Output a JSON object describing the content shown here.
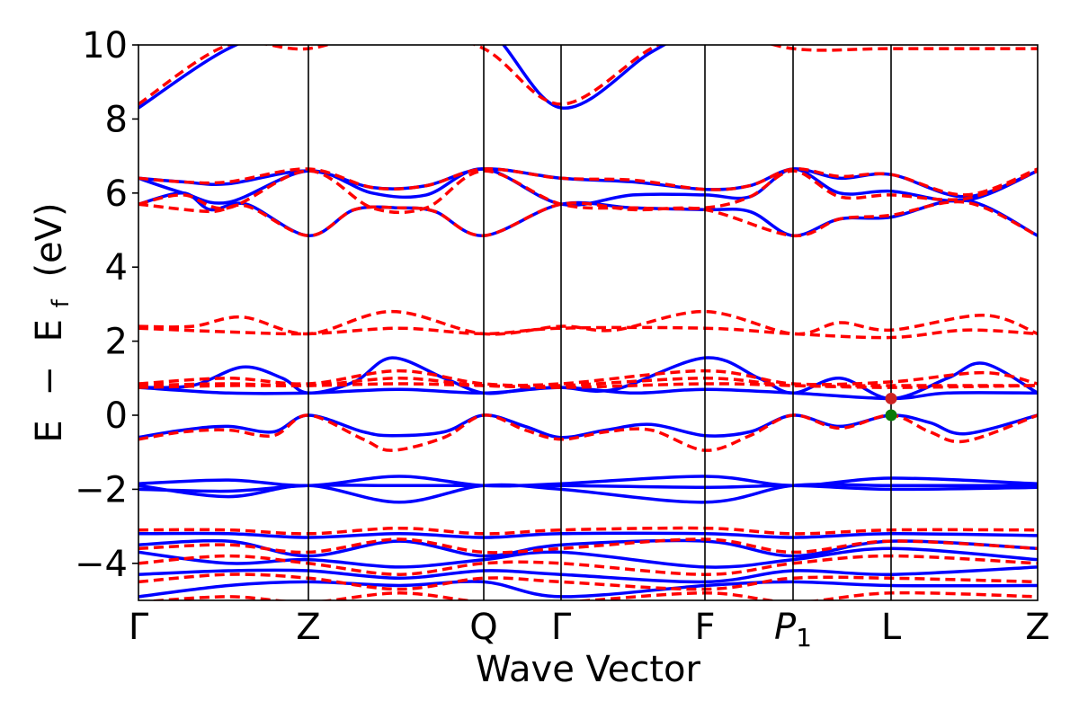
{
  "chart_data": {
    "type": "line",
    "xlabel": "Wave Vector",
    "ylabel_parts": [
      "E",
      "−",
      "E",
      "f",
      "(eV)"
    ],
    "ylim": [
      -5,
      10
    ],
    "yticks": [
      -4,
      -2,
      0,
      2,
      4,
      6,
      8,
      10
    ],
    "ytick_labels": [
      "−4",
      "−2",
      "0",
      "2",
      "4",
      "6",
      "8",
      "10"
    ],
    "xlim": [
      0,
      1
    ],
    "high_symmetry_points": [
      {
        "label": "Γ",
        "x": 0.0
      },
      {
        "label": "Z",
        "x": 0.189
      },
      {
        "label": "Q",
        "x": 0.384
      },
      {
        "label": "Γ",
        "x": 0.47
      },
      {
        "label": "F",
        "x": 0.63
      },
      {
        "label": "P",
        "sub": "1",
        "x": 0.728
      },
      {
        "label": "L",
        "x": 0.837
      },
      {
        "label": "Z",
        "x": 1.0
      }
    ],
    "series": [
      {
        "style": "solid",
        "color": "#0000ff",
        "bands": [
          {
            "x": [
              0,
              0.1,
              0.189,
              0.29,
              0.384,
              0.47,
              0.57,
              0.63,
              0.68,
              0.728,
              0.78,
              0.837,
              0.92,
              1.0
            ],
            "y": [
              8.3,
              9.9,
              10.6,
              10.6,
              10.5,
              8.3,
              9.8,
              10.5,
              10.4,
              10.6,
              10.4,
              10.6,
              10.5,
              10.6
            ]
          },
          {
            "x": [
              0,
              0.05,
              0.1,
              0.189,
              0.26,
              0.32,
              0.384,
              0.47,
              0.55,
              0.63,
              0.68,
              0.728,
              0.78,
              0.837,
              0.92,
              1.0
            ],
            "y": [
              6.4,
              6.3,
              6.25,
              6.6,
              6.15,
              6.2,
              6.65,
              6.4,
              6.3,
              6.1,
              6.2,
              6.65,
              6.4,
              6.5,
              5.9,
              6.6
            ]
          },
          {
            "x": [
              0,
              0.05,
              0.1,
              0.189,
              0.26,
              0.32,
              0.384,
              0.47,
              0.55,
              0.63,
              0.68,
              0.728,
              0.78,
              0.837,
              0.92,
              1.0
            ],
            "y": [
              6.4,
              6.0,
              5.75,
              6.6,
              6.0,
              5.95,
              6.65,
              5.7,
              5.95,
              5.95,
              5.9,
              6.65,
              6.0,
              6.05,
              5.8,
              6.6
            ]
          },
          {
            "x": [
              0,
              0.05,
              0.08,
              0.12,
              0.189,
              0.24,
              0.29,
              0.33,
              0.384,
              0.47,
              0.55,
              0.63,
              0.68,
              0.728,
              0.78,
              0.837,
              0.92,
              1.0
            ],
            "y": [
              5.7,
              6.0,
              5.55,
              5.7,
              4.85,
              5.55,
              5.6,
              5.5,
              4.85,
              5.7,
              5.6,
              5.55,
              5.5,
              4.85,
              5.3,
              5.35,
              5.8,
              4.85
            ]
          },
          {
            "x": [
              0,
              0.06,
              0.116,
              0.16,
              0.189,
              0.24,
              0.282,
              0.34,
              0.384,
              0.43,
              0.47,
              0.53,
              0.63,
              0.69,
              0.728,
              0.78,
              0.837,
              0.9,
              0.94,
              1.0
            ],
            "y": [
              0.75,
              0.8,
              1.3,
              1.0,
              0.6,
              0.9,
              1.55,
              1.0,
              0.6,
              0.7,
              0.75,
              0.7,
              1.55,
              1.0,
              0.6,
              1.0,
              0.45,
              1.0,
              1.4,
              0.6
            ]
          },
          {
            "x": [
              0,
              0.1,
              0.189,
              0.29,
              0.384,
              0.47,
              0.55,
              0.63,
              0.728,
              0.837,
              0.9,
              1.0
            ],
            "y": [
              0.75,
              0.6,
              0.6,
              0.7,
              0.6,
              0.75,
              0.6,
              0.7,
              0.6,
              0.45,
              0.6,
              0.6
            ]
          },
          {
            "x": [
              0,
              0.05,
              0.1,
              0.15,
              0.189,
              0.25,
              0.282,
              0.34,
              0.384,
              0.43,
              0.47,
              0.52,
              0.57,
              0.63,
              0.68,
              0.728,
              0.78,
              0.837,
              0.88,
              0.92,
              1.0
            ],
            "y": [
              -0.6,
              -0.4,
              -0.3,
              -0.45,
              0.0,
              -0.45,
              -0.55,
              -0.45,
              0.0,
              -0.3,
              -0.6,
              -0.4,
              -0.25,
              -0.55,
              -0.45,
              0.0,
              -0.3,
              0.0,
              -0.2,
              -0.5,
              0.0
            ]
          },
          {
            "x": [
              0,
              0.1,
              0.189,
              0.29,
              0.384,
              0.47,
              0.63,
              0.728,
              0.837,
              1.0
            ],
            "y": [
              -1.85,
              -1.75,
              -1.9,
              -1.65,
              -1.9,
              -1.85,
              -1.65,
              -1.9,
              -1.7,
              -1.85
            ]
          },
          {
            "x": [
              0,
              0.1,
              0.189,
              0.29,
              0.384,
              0.47,
              0.63,
              0.728,
              0.837,
              1.0
            ],
            "y": [
              -1.9,
              -2.2,
              -1.9,
              -2.35,
              -1.9,
              -2.0,
              -2.35,
              -1.9,
              -1.9,
              -1.9
            ]
          },
          {
            "x": [
              0,
              0.1,
              0.189,
              0.29,
              0.384,
              0.47,
              0.63,
              0.728,
              0.837,
              1.0
            ],
            "y": [
              -2.0,
              -2.05,
              -1.9,
              -1.9,
              -1.9,
              -1.9,
              -1.95,
              -1.9,
              -2.0,
              -1.95
            ]
          },
          {
            "x": [
              0,
              0.1,
              0.189,
              0.29,
              0.384,
              0.47,
              0.63,
              0.728,
              0.837,
              1.0
            ],
            "y": [
              -3.2,
              -3.2,
              -3.3,
              -3.2,
              -3.3,
              -3.2,
              -3.2,
              -3.3,
              -3.2,
              -3.25
            ]
          },
          {
            "x": [
              0,
              0.1,
              0.189,
              0.29,
              0.384,
              0.47,
              0.63,
              0.728,
              0.837,
              1.0
            ],
            "y": [
              -3.5,
              -3.4,
              -3.8,
              -3.4,
              -3.8,
              -3.5,
              -3.4,
              -3.8,
              -3.4,
              -3.6
            ]
          },
          {
            "x": [
              0,
              0.1,
              0.189,
              0.29,
              0.384,
              0.47,
              0.63,
              0.728,
              0.837,
              1.0
            ],
            "y": [
              -3.7,
              -4.0,
              -3.9,
              -4.1,
              -3.9,
              -3.7,
              -4.1,
              -3.9,
              -3.6,
              -3.9
            ]
          },
          {
            "x": [
              0,
              0.1,
              0.189,
              0.29,
              0.384,
              0.47,
              0.63,
              0.728,
              0.837,
              1.0
            ],
            "y": [
              -4.3,
              -4.2,
              -4.2,
              -4.4,
              -4.2,
              -4.3,
              -4.5,
              -4.2,
              -4.3,
              -4.1
            ]
          },
          {
            "x": [
              0,
              0.1,
              0.189,
              0.29,
              0.384,
              0.47,
              0.63,
              0.728,
              0.837,
              1.0
            ],
            "y": [
              -4.9,
              -4.6,
              -4.5,
              -4.6,
              -4.5,
              -4.9,
              -4.6,
              -4.5,
              -4.6,
              -4.6
            ]
          }
        ]
      },
      {
        "style": "dashed",
        "color": "#ff0000",
        "bands": [
          {
            "x": [
              0,
              0.1,
              0.189,
              0.29,
              0.384,
              0.47,
              0.57,
              0.63,
              0.728,
              0.837,
              1.0
            ],
            "y": [
              8.4,
              10.0,
              9.9,
              10.5,
              9.9,
              8.4,
              9.9,
              10.5,
              9.9,
              9.9,
              9.9
            ]
          },
          {
            "x": [
              0,
              0.05,
              0.1,
              0.189,
              0.26,
              0.32,
              0.384,
              0.47,
              0.55,
              0.63,
              0.68,
              0.728,
              0.78,
              0.837,
              0.92,
              1.0
            ],
            "y": [
              6.4,
              6.3,
              6.3,
              6.65,
              6.15,
              6.2,
              6.65,
              6.4,
              6.35,
              6.1,
              6.2,
              6.65,
              6.45,
              6.5,
              5.95,
              6.65
            ]
          },
          {
            "x": [
              0,
              0.05,
              0.1,
              0.189,
              0.26,
              0.32,
              0.384,
              0.47,
              0.55,
              0.63,
              0.68,
              0.728,
              0.78,
              0.837,
              0.92,
              1.0
            ],
            "y": [
              5.7,
              5.95,
              5.6,
              6.6,
              5.6,
              5.6,
              6.6,
              5.7,
              5.6,
              5.6,
              5.9,
              6.6,
              5.9,
              5.95,
              5.85,
              6.6
            ]
          },
          {
            "x": [
              0,
              0.08,
              0.12,
              0.189,
              0.24,
              0.29,
              0.33,
              0.384,
              0.47,
              0.55,
              0.63,
              0.728,
              0.78,
              0.837,
              0.92,
              1.0
            ],
            "y": [
              5.7,
              5.5,
              5.65,
              4.85,
              5.55,
              5.6,
              5.5,
              4.85,
              5.7,
              5.55,
              5.55,
              4.85,
              5.3,
              5.4,
              5.75,
              4.85
            ]
          },
          {
            "x": [
              0,
              0.06,
              0.116,
              0.189,
              0.282,
              0.384,
              0.47,
              0.53,
              0.63,
              0.728,
              0.78,
              0.837,
              0.94,
              1.0
            ],
            "y": [
              2.4,
              2.4,
              2.65,
              2.2,
              2.8,
              2.2,
              2.4,
              2.3,
              2.8,
              2.2,
              2.5,
              2.3,
              2.7,
              2.2
            ]
          },
          {
            "x": [
              0,
              0.1,
              0.189,
              0.29,
              0.384,
              0.47,
              0.63,
              0.728,
              0.837,
              0.92,
              1.0
            ],
            "y": [
              2.35,
              2.25,
              2.2,
              2.35,
              2.2,
              2.35,
              2.35,
              2.2,
              2.1,
              2.3,
              2.2
            ]
          },
          {
            "x": [
              0,
              0.1,
              0.189,
              0.29,
              0.384,
              0.47,
              0.63,
              0.728,
              0.837,
              0.94,
              1.0
            ],
            "y": [
              0.85,
              1.0,
              0.85,
              1.2,
              0.85,
              0.85,
              1.2,
              0.85,
              0.9,
              1.15,
              0.85
            ]
          },
          {
            "x": [
              0,
              0.1,
              0.189,
              0.29,
              0.384,
              0.47,
              0.63,
              0.728,
              0.837,
              1.0
            ],
            "y": [
              0.8,
              0.85,
              0.8,
              1.0,
              0.8,
              0.8,
              1.0,
              0.8,
              0.8,
              0.8
            ]
          },
          {
            "x": [
              0,
              0.1,
              0.189,
              0.29,
              0.384,
              0.47,
              0.63,
              0.728,
              0.837,
              1.0
            ],
            "y": [
              0.75,
              0.8,
              0.8,
              0.85,
              0.8,
              0.75,
              0.85,
              0.8,
              0.75,
              0.8
            ]
          },
          {
            "x": [
              0,
              0.05,
              0.1,
              0.15,
              0.189,
              0.25,
              0.282,
              0.34,
              0.384,
              0.43,
              0.47,
              0.52,
              0.57,
              0.63,
              0.68,
              0.728,
              0.78,
              0.837,
              0.88,
              0.92,
              1.0
            ],
            "y": [
              -0.65,
              -0.45,
              -0.4,
              -0.55,
              0.0,
              -0.65,
              -0.95,
              -0.6,
              0.0,
              -0.4,
              -0.65,
              -0.45,
              -0.4,
              -0.95,
              -0.55,
              0.0,
              -0.35,
              0.0,
              -0.45,
              -0.7,
              0.0
            ]
          },
          {
            "x": [
              0,
              0.1,
              0.189,
              0.29,
              0.384,
              0.47,
              0.63,
              0.728,
              0.837,
              1.0
            ],
            "y": [
              -3.1,
              -3.1,
              -3.2,
              -3.05,
              -3.2,
              -3.1,
              -3.05,
              -3.2,
              -3.1,
              -3.1
            ]
          },
          {
            "x": [
              0,
              0.1,
              0.189,
              0.29,
              0.384,
              0.47,
              0.63,
              0.728,
              0.837,
              1.0
            ],
            "y": [
              -3.6,
              -3.5,
              -3.7,
              -3.35,
              -3.7,
              -3.6,
              -3.35,
              -3.7,
              -3.4,
              -3.6
            ]
          },
          {
            "x": [
              0,
              0.1,
              0.189,
              0.29,
              0.384,
              0.47,
              0.63,
              0.728,
              0.837,
              1.0
            ],
            "y": [
              -4.0,
              -3.8,
              -4.0,
              -4.3,
              -4.0,
              -4.0,
              -4.3,
              -4.0,
              -3.8,
              -4.0
            ]
          },
          {
            "x": [
              0,
              0.1,
              0.189,
              0.29,
              0.384,
              0.47,
              0.63,
              0.728,
              0.837,
              1.0
            ],
            "y": [
              -4.5,
              -4.3,
              -4.4,
              -4.7,
              -4.4,
              -4.5,
              -4.7,
              -4.4,
              -4.4,
              -4.5
            ]
          },
          {
            "x": [
              0,
              0.1,
              0.189,
              0.29,
              0.384,
              0.47,
              0.63,
              0.728,
              0.837,
              1.0
            ],
            "y": [
              -5.05,
              -4.9,
              -5.05,
              -4.8,
              -5.05,
              -5.05,
              -4.8,
              -5.05,
              -4.8,
              -4.9
            ]
          }
        ]
      }
    ],
    "markers": [
      {
        "x": 0.837,
        "y": 0.45,
        "color": "#cc2222"
      },
      {
        "x": 0.837,
        "y": 0.0,
        "color": "#0a7a0a"
      }
    ]
  }
}
